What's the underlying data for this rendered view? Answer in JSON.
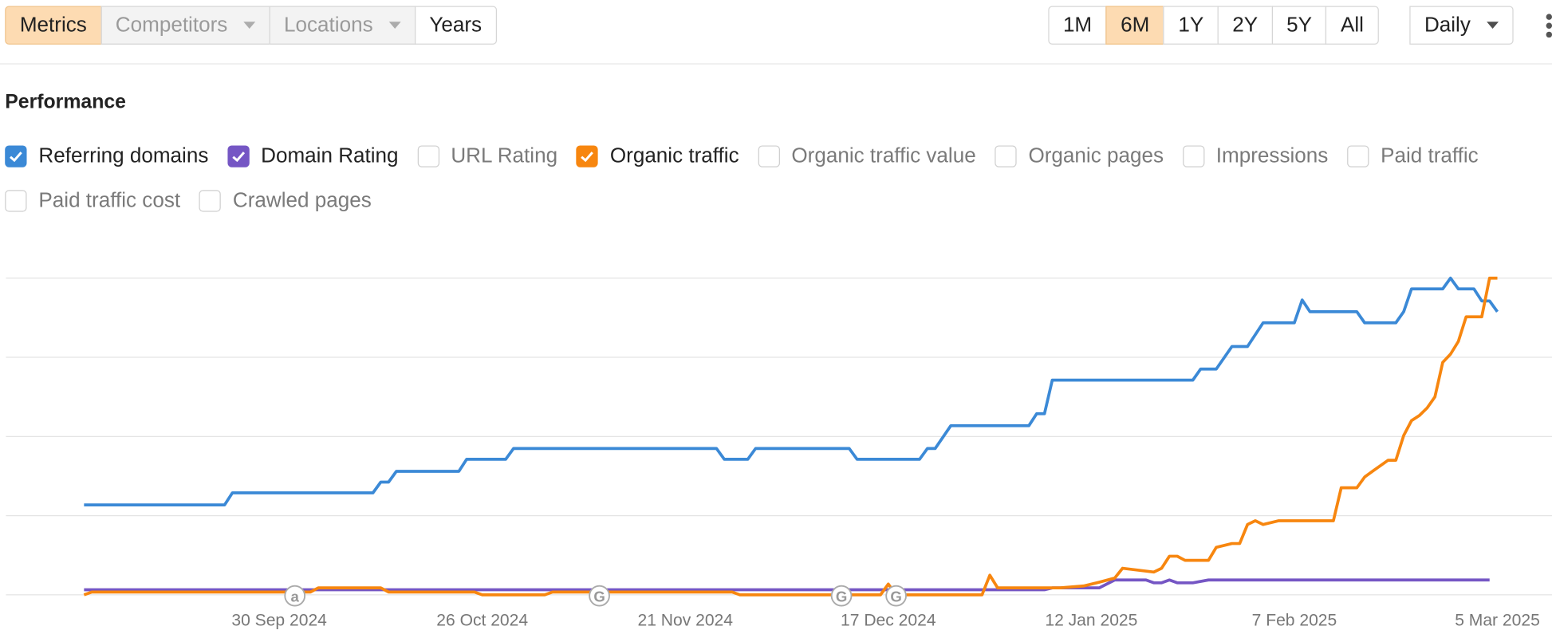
{
  "toolbar": {
    "filters": [
      {
        "label": "Metrics",
        "active": true
      },
      {
        "label": "Competitors",
        "dropdown": true,
        "disabled": true
      },
      {
        "label": "Locations",
        "dropdown": true,
        "disabled": true
      },
      {
        "label": "Years"
      }
    ],
    "ranges": [
      {
        "label": "1M"
      },
      {
        "label": "6M",
        "active": true
      },
      {
        "label": "1Y"
      },
      {
        "label": "2Y"
      },
      {
        "label": "5Y"
      },
      {
        "label": "All"
      }
    ],
    "interval": {
      "label": "Daily",
      "dropdown": true
    }
  },
  "chart_data": {
    "type": "line",
    "title": "Performance",
    "metrics": [
      {
        "name": "Referring domains",
        "checked": true
      },
      {
        "name": "Domain Rating",
        "checked": true
      },
      {
        "name": "URL Rating",
        "checked": false
      },
      {
        "name": "Organic traffic",
        "checked": true
      },
      {
        "name": "Organic traffic value",
        "checked": false
      },
      {
        "name": "Organic pages",
        "checked": false
      },
      {
        "name": "Impressions",
        "checked": false
      },
      {
        "name": "Paid traffic",
        "checked": false
      },
      {
        "name": "Paid traffic cost",
        "checked": false
      },
      {
        "name": "Crawled pages",
        "checked": false
      }
    ],
    "xlim": [
      "2024-08-26",
      "2025-03-12"
    ],
    "xticks": [
      {
        "value": "2024-09-30",
        "label": "30 Sep 2024"
      },
      {
        "value": "2024-10-26",
        "label": "26 Oct 2024"
      },
      {
        "value": "2024-11-21",
        "label": "21 Nov 2024"
      },
      {
        "value": "2024-12-17",
        "label": "17 Dec 2024"
      },
      {
        "value": "2025-01-12",
        "label": "12 Jan 2025"
      },
      {
        "value": "2025-02-07",
        "label": "7 Feb 2025"
      },
      {
        "value": "2025-03-05",
        "label": "5 Mar 2025"
      }
    ],
    "ylim": [
      0,
      100
    ],
    "yticks": [
      0,
      25,
      50,
      75,
      100
    ],
    "grid": true,
    "series": [
      {
        "color": "#3b89d6",
        "x": [
          "2024-09-05",
          "2024-09-23",
          "2024-09-24",
          "2024-10-12",
          "2024-10-13",
          "2024-10-14",
          "2024-10-15",
          "2024-10-23",
          "2024-10-24",
          "2024-10-29",
          "2024-10-30",
          "2024-11-25",
          "2024-11-26",
          "2024-11-29",
          "2024-11-30",
          "2024-12-12",
          "2024-12-13",
          "2024-12-21",
          "2024-12-22",
          "2024-12-23",
          "2024-12-25",
          "2025-01-04",
          "2025-01-05",
          "2025-01-06",
          "2025-01-07",
          "2025-01-25",
          "2025-01-26",
          "2025-01-28",
          "2025-01-30",
          "2025-02-01",
          "2025-02-03",
          "2025-02-07",
          "2025-02-08",
          "2025-02-09",
          "2025-02-15",
          "2025-02-16",
          "2025-02-20",
          "2025-02-21",
          "2025-02-22",
          "2025-02-26",
          "2025-02-27",
          "2025-02-28",
          "2025-03-02",
          "2025-03-03",
          "2025-03-04",
          "2025-03-05"
        ],
        "values": [
          28.4,
          28.4,
          32.2,
          32.2,
          35.6,
          35.6,
          39,
          39,
          42.8,
          42.8,
          46.2,
          46.2,
          42.8,
          42.8,
          46.2,
          46.2,
          42.8,
          42.8,
          46.2,
          46.2,
          53.4,
          53.4,
          57.2,
          57.2,
          67.8,
          67.8,
          71.3,
          71.3,
          78.4,
          78.4,
          85.9,
          85.9,
          93.1,
          89.4,
          89.4,
          85.9,
          85.9,
          89.4,
          96.6,
          96.6,
          100,
          96.6,
          96.6,
          92.8,
          92.8,
          89.4
        ]
      },
      {
        "color": "#7556c4",
        "x": [
          "2024-09-05",
          "2025-01-06",
          "2025-01-07",
          "2025-01-13",
          "2025-01-15",
          "2025-01-19",
          "2025-01-20",
          "2025-01-21",
          "2025-01-22",
          "2025-01-23",
          "2025-01-25",
          "2025-01-27",
          "2025-03-04"
        ],
        "values": [
          1.6,
          1.6,
          2.2,
          2.2,
          4.7,
          4.7,
          3.8,
          3.8,
          4.7,
          3.8,
          3.8,
          4.7,
          4.7
        ]
      },
      {
        "color": "#f7860f",
        "x": [
          "2024-09-05",
          "2024-09-06",
          "2024-10-04",
          "2024-10-05",
          "2024-10-13",
          "2024-10-14",
          "2024-10-25",
          "2024-10-26",
          "2024-11-03",
          "2024-11-04",
          "2024-11-27",
          "2024-11-28",
          "2024-12-16",
          "2024-12-17",
          "2024-12-18",
          "2024-12-29",
          "2024-12-30",
          "2024-12-31",
          "2025-01-08",
          "2025-01-11",
          "2025-01-13",
          "2025-01-15",
          "2025-01-16",
          "2025-01-18",
          "2025-01-20",
          "2025-01-21",
          "2025-01-22",
          "2025-01-23",
          "2025-01-24",
          "2025-01-27",
          "2025-01-28",
          "2025-01-30",
          "2025-01-31",
          "2025-02-01",
          "2025-02-02",
          "2025-02-03",
          "2025-02-05",
          "2025-02-12",
          "2025-02-13",
          "2025-02-15",
          "2025-02-16",
          "2025-02-17",
          "2025-02-19",
          "2025-02-20",
          "2025-02-21",
          "2025-02-22",
          "2025-02-23",
          "2025-02-24",
          "2025-02-25",
          "2025-02-26",
          "2025-02-27",
          "2025-02-28",
          "2025-03-01",
          "2025-03-03",
          "2025-03-04",
          "2025-03-05"
        ],
        "values": [
          0,
          0.9,
          0.9,
          2.2,
          2.2,
          0.9,
          0.9,
          0,
          0,
          0.9,
          0.9,
          0,
          0,
          3.4,
          0,
          0,
          6.2,
          2.2,
          2.2,
          2.8,
          4,
          5.3,
          8.4,
          7.8,
          7.2,
          8.4,
          12.2,
          12.2,
          10.9,
          10.9,
          15,
          16.2,
          16.2,
          22.2,
          23.4,
          22.2,
          23.4,
          23.4,
          33.8,
          33.8,
          37.2,
          39,
          42.5,
          42.5,
          50.3,
          55,
          56.6,
          59,
          62.5,
          73.4,
          76,
          80,
          87.8,
          87.8,
          100,
          100
        ]
      }
    ],
    "annotations": [
      {
        "x": "2024-10-02",
        "label": "a"
      },
      {
        "x": "2024-11-10",
        "label": "G"
      },
      {
        "x": "2024-12-11",
        "label": "G"
      },
      {
        "x": "2024-12-18",
        "label": "G"
      }
    ]
  }
}
